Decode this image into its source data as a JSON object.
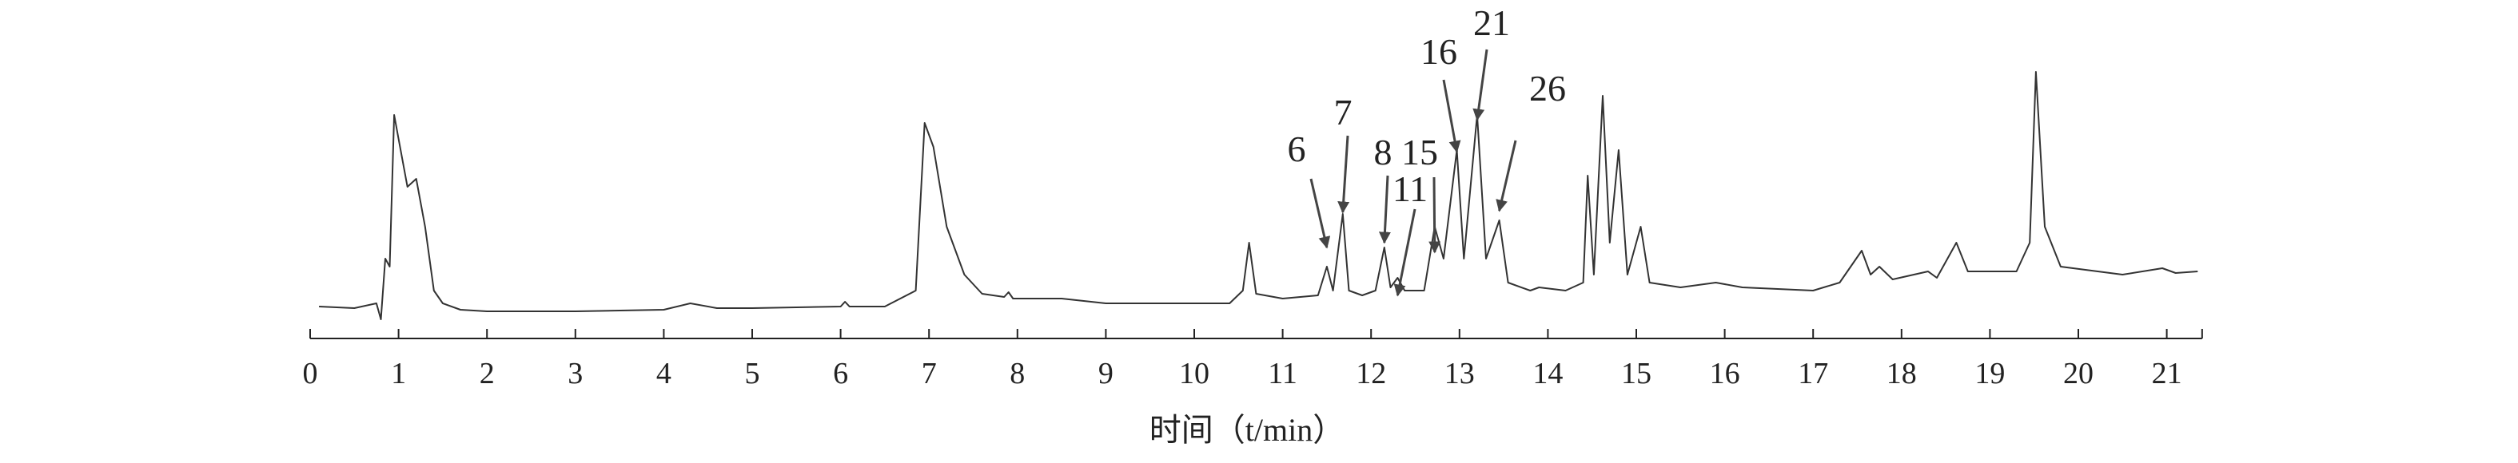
{
  "chart_data": {
    "type": "line",
    "color": "#333333",
    "xlabel": "时间（t/min）",
    "xlim": [
      0,
      21.4
    ],
    "xticks": [
      0,
      1,
      2,
      3,
      4,
      5,
      6,
      7,
      8,
      9,
      10,
      11,
      12,
      13,
      14,
      15,
      16,
      17,
      18,
      19,
      20,
      21
    ],
    "ylim": [
      0,
      180
    ],
    "x": [
      0.1,
      0.5,
      0.75,
      0.8,
      0.85,
      0.9,
      0.95,
      1.0,
      1.1,
      1.2,
      1.3,
      1.4,
      1.5,
      1.7,
      2.0,
      3.0,
      4.0,
      4.3,
      4.6,
      5.0,
      6.0,
      6.05,
      6.1,
      6.5,
      6.85,
      6.95,
      7.05,
      7.2,
      7.4,
      7.6,
      7.85,
      7.9,
      7.95,
      8.5,
      9.0,
      10.4,
      10.55,
      10.62,
      10.7,
      11.0,
      11.4,
      11.5,
      11.57,
      11.68,
      11.75,
      11.9,
      12.05,
      12.15,
      12.22,
      12.3,
      12.38,
      12.6,
      12.72,
      12.82,
      12.97,
      13.05,
      13.2,
      13.3,
      13.45,
      13.55,
      13.8,
      13.9,
      14.2,
      14.4,
      14.45,
      14.52,
      14.62,
      14.7,
      14.8,
      14.9,
      15.05,
      15.15,
      15.5,
      15.9,
      16.2,
      17.0,
      17.3,
      17.55,
      17.65,
      17.75,
      17.9,
      18.3,
      18.4,
      18.62,
      18.75,
      19.3,
      19.45,
      19.52,
      19.62,
      19.8,
      20.5,
      20.95,
      21.1,
      21.35
    ],
    "values": [
      20,
      19,
      22,
      12,
      50,
      45,
      140,
      125,
      95,
      100,
      70,
      30,
      22,
      18,
      17,
      17,
      18,
      22,
      19,
      19,
      20,
      23,
      20,
      20,
      30,
      135,
      120,
      70,
      40,
      28,
      26,
      29,
      25,
      25,
      22,
      22,
      30,
      60,
      28,
      25,
      27,
      45,
      30,
      78,
      30,
      27,
      30,
      57,
      32,
      38,
      30,
      30,
      70,
      50,
      118,
      50,
      140,
      50,
      74,
      35,
      30,
      32,
      30,
      35,
      102,
      40,
      152,
      60,
      118,
      40,
      70,
      35,
      32,
      35,
      32,
      30,
      35,
      55,
      40,
      45,
      37,
      42,
      38,
      60,
      42,
      42,
      60,
      167,
      70,
      45,
      40,
      44,
      41,
      42
    ],
    "annotations": [
      {
        "text": "6",
        "x": 11.5
      },
      {
        "text": "7",
        "x": 11.68
      },
      {
        "text": "8",
        "x": 12.15
      },
      {
        "text": "15",
        "x": 12.72
      },
      {
        "text": "11",
        "x": 12.3
      },
      {
        "text": "16",
        "x": 12.97
      },
      {
        "text": "21",
        "x": 13.2
      },
      {
        "text": "26",
        "x": 13.45
      }
    ]
  }
}
